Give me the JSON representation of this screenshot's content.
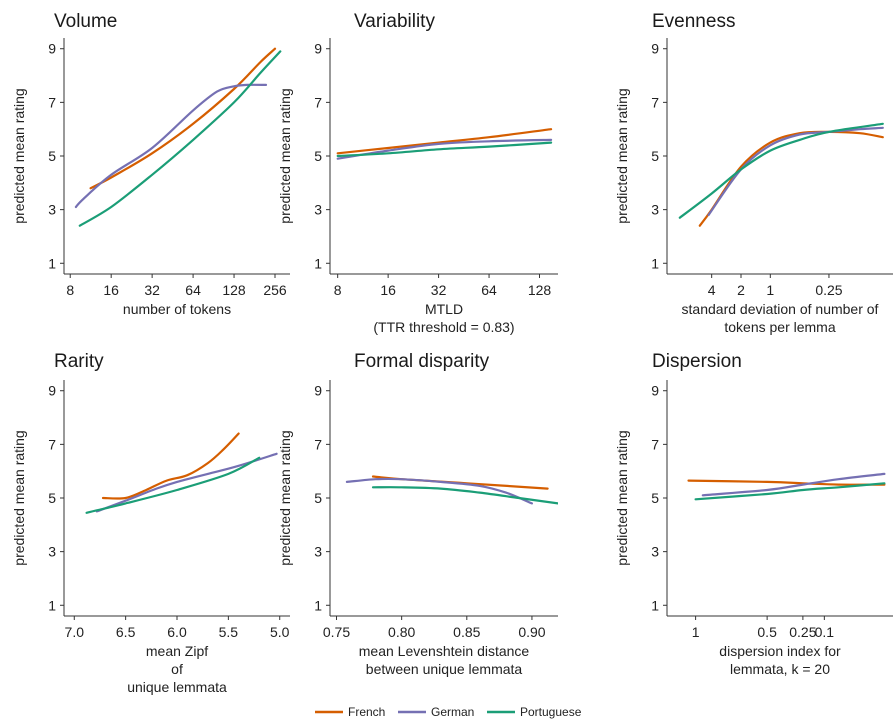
{
  "colors": {
    "French": "#D55E00",
    "German": "#7570B3",
    "Portuguese": "#1B9E77"
  },
  "legend": {
    "placement": "bottom-center",
    "entries": [
      "French",
      "German",
      "Portuguese"
    ]
  },
  "chart_data": [
    {
      "type": "line",
      "title": "Volume",
      "xlabel_lines": [
        "number of tokens"
      ],
      "ylabel": "predicted mean rating",
      "x_scale": "log2",
      "xlim": [
        7.2,
        330
      ],
      "ylim": [
        0.6,
        9.4
      ],
      "x_ticks": [
        8,
        16,
        32,
        64,
        128,
        256
      ],
      "x_tick_labels": [
        "8",
        "16",
        "32",
        "64",
        "128",
        "256"
      ],
      "y_ticks": [
        1,
        3,
        5,
        7,
        9
      ],
      "grid": false,
      "series": [
        {
          "name": "French",
          "x": [
            11.3,
            16,
            32,
            64,
            128,
            200,
            256
          ],
          "y": [
            3.8,
            4.2,
            5.1,
            6.2,
            7.5,
            8.5,
            9.0
          ]
        },
        {
          "name": "German",
          "x": [
            8.8,
            10,
            16,
            32,
            64,
            96,
            128,
            160,
            220
          ],
          "y": [
            3.1,
            3.4,
            4.3,
            5.3,
            6.7,
            7.4,
            7.6,
            7.65,
            7.65
          ]
        },
        {
          "name": "Portuguese",
          "x": [
            9.4,
            16,
            32,
            64,
            128,
            200,
            280
          ],
          "y": [
            2.4,
            3.1,
            4.3,
            5.6,
            7.0,
            8.1,
            8.9
          ]
        }
      ]
    },
    {
      "type": "line",
      "title": "Variability",
      "xlabel_lines": [
        "MTLD",
        "(TTR threshold = 0.83)"
      ],
      "ylabel": "predicted mean rating",
      "x_scale": "log2",
      "xlim": [
        7.2,
        165
      ],
      "ylim": [
        0.6,
        9.4
      ],
      "x_ticks": [
        8,
        16,
        32,
        64,
        128
      ],
      "x_tick_labels": [
        "8",
        "16",
        "32",
        "64",
        "128"
      ],
      "y_ticks": [
        1,
        3,
        5,
        7,
        9
      ],
      "grid": false,
      "series": [
        {
          "name": "French",
          "x": [
            8,
            16,
            32,
            64,
            150
          ],
          "y": [
            5.1,
            5.3,
            5.5,
            5.7,
            6.0
          ]
        },
        {
          "name": "German",
          "x": [
            8,
            16,
            32,
            64,
            150
          ],
          "y": [
            4.9,
            5.2,
            5.45,
            5.55,
            5.6
          ]
        },
        {
          "name": "Portuguese",
          "x": [
            8,
            16,
            32,
            64,
            150
          ],
          "y": [
            5.0,
            5.1,
            5.25,
            5.35,
            5.5
          ]
        }
      ]
    },
    {
      "type": "line",
      "title": "Evenness",
      "xlabel_lines": [
        "standard deviation of number of",
        "tokens per lemma"
      ],
      "ylabel": "predicted mean rating",
      "x_scale": "log2-reversed",
      "xlim": [
        11.5,
        0.055
      ],
      "ylim": [
        0.6,
        9.4
      ],
      "x_ticks": [
        4,
        2,
        1,
        0.25
      ],
      "x_tick_labels": [
        "4",
        "2",
        "1",
        "0.25"
      ],
      "y_ticks": [
        1,
        3,
        5,
        7,
        9
      ],
      "grid": false,
      "series": [
        {
          "name": "French",
          "x": [
            5.3,
            4,
            2,
            1,
            0.5,
            0.25,
            0.12,
            0.07
          ],
          "y": [
            2.4,
            3.0,
            4.6,
            5.5,
            5.85,
            5.9,
            5.85,
            5.7
          ]
        },
        {
          "name": "German",
          "x": [
            4.3,
            2,
            1,
            0.5,
            0.25,
            0.12,
            0.07
          ],
          "y": [
            2.8,
            4.5,
            5.4,
            5.8,
            5.9,
            6.0,
            6.05
          ]
        },
        {
          "name": "Portuguese",
          "x": [
            8.5,
            4,
            2,
            1,
            0.5,
            0.25,
            0.07
          ],
          "y": [
            2.7,
            3.6,
            4.5,
            5.2,
            5.6,
            5.9,
            6.2
          ]
        }
      ]
    },
    {
      "type": "line",
      "title": "Rarity",
      "xlabel_lines": [
        "mean Zipf",
        "of",
        "unique lemmata"
      ],
      "ylabel": "predicted mean rating",
      "x_scale": "linear-reversed",
      "xlim": [
        7.1,
        4.9
      ],
      "ylim": [
        0.6,
        9.4
      ],
      "x_ticks": [
        7.0,
        6.5,
        6.0,
        5.5,
        5.0
      ],
      "x_tick_labels": [
        "7.0",
        "6.5",
        "6.0",
        "5.5",
        "5.0"
      ],
      "y_ticks": [
        1,
        3,
        5,
        7,
        9
      ],
      "grid": false,
      "series": [
        {
          "name": "French",
          "x": [
            6.72,
            6.5,
            6.3,
            6.1,
            5.9,
            5.7,
            5.55,
            5.4
          ],
          "y": [
            5.0,
            5.0,
            5.3,
            5.65,
            5.85,
            6.3,
            6.8,
            7.4
          ]
        },
        {
          "name": "German",
          "x": [
            6.78,
            6.5,
            6.2,
            6.0,
            5.7,
            5.4,
            5.03
          ],
          "y": [
            4.5,
            4.9,
            5.35,
            5.6,
            5.9,
            6.2,
            6.65
          ]
        },
        {
          "name": "Portuguese",
          "x": [
            6.88,
            6.5,
            6.0,
            5.5,
            5.2
          ],
          "y": [
            4.45,
            4.8,
            5.3,
            5.9,
            6.5
          ]
        }
      ]
    },
    {
      "type": "line",
      "title": "Formal disparity",
      "xlabel_lines": [
        "mean Levenshtein distance",
        "between unique lemmata"
      ],
      "ylabel": "predicted mean rating",
      "x_scale": "linear",
      "xlim": [
        0.745,
        0.92
      ],
      "ylim": [
        0.6,
        9.4
      ],
      "x_ticks": [
        0.75,
        0.8,
        0.85,
        0.9
      ],
      "x_tick_labels": [
        "0.75",
        "0.80",
        "0.85",
        "0.90"
      ],
      "y_ticks": [
        1,
        3,
        5,
        7,
        9
      ],
      "grid": false,
      "series": [
        {
          "name": "French",
          "x": [
            0.778,
            0.8,
            0.85,
            0.912
          ],
          "y": [
            5.8,
            5.7,
            5.55,
            5.35
          ]
        },
        {
          "name": "German",
          "x": [
            0.758,
            0.78,
            0.8,
            0.83,
            0.86,
            0.88,
            0.9
          ],
          "y": [
            5.6,
            5.7,
            5.7,
            5.6,
            5.45,
            5.2,
            4.8
          ]
        },
        {
          "name": "Portuguese",
          "x": [
            0.778,
            0.8,
            0.83,
            0.86,
            0.89,
            0.92
          ],
          "y": [
            5.4,
            5.4,
            5.35,
            5.2,
            5.0,
            4.8
          ]
        }
      ]
    },
    {
      "type": "line",
      "title": "Dispersion",
      "xlabel_lines": [
        "dispersion index for",
        "lemmata, k = 20"
      ],
      "ylabel": "predicted mean rating",
      "x_scale": "reversed",
      "xlim": [
        1.2,
        -0.38
      ],
      "ylim": [
        0.6,
        9.4
      ],
      "x_ticks": [
        1,
        0.5,
        0.25,
        0.1
      ],
      "x_tick_labels": [
        "1",
        "0.5",
        "0.25",
        "0.1"
      ],
      "y_ticks": [
        1,
        3,
        5,
        7,
        9
      ],
      "grid": false,
      "series": [
        {
          "name": "French",
          "x": [
            1.05,
            0.5,
            0.25,
            0,
            -0.32
          ],
          "y": [
            5.65,
            5.6,
            5.55,
            5.5,
            5.5
          ]
        },
        {
          "name": "German",
          "x": [
            0.95,
            0.5,
            0.25,
            0,
            -0.32
          ],
          "y": [
            5.1,
            5.3,
            5.5,
            5.7,
            5.9
          ]
        },
        {
          "name": "Portuguese",
          "x": [
            1.0,
            0.5,
            0.25,
            0,
            -0.32
          ],
          "y": [
            4.95,
            5.15,
            5.3,
            5.4,
            5.55
          ]
        }
      ]
    }
  ]
}
